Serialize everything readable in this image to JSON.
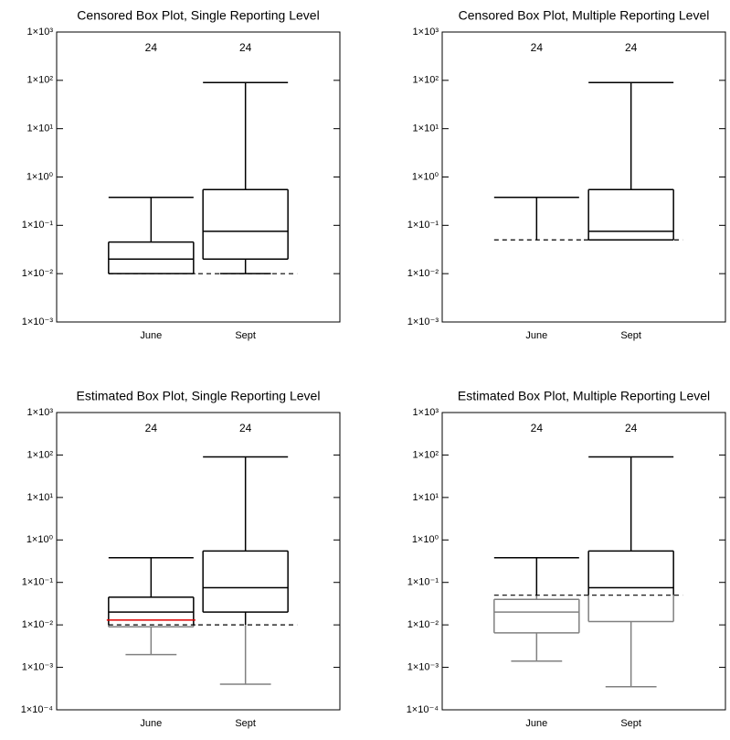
{
  "chart_data": [
    {
      "type": "box",
      "title": "Censored Box Plot, Single Reporting Level",
      "categories": [
        "June",
        "Sept"
      ],
      "n": [
        24,
        24
      ],
      "log_y": true,
      "ylim": [
        0.001,
        1000
      ],
      "yticks": [
        {
          "value": 1000,
          "label": "1×10³"
        },
        {
          "value": 100,
          "label": "1×10²"
        },
        {
          "value": 10,
          "label": "1×10¹"
        },
        {
          "value": 1,
          "label": "1×10⁰"
        },
        {
          "value": 0.1,
          "label": "1×10⁻¹"
        },
        {
          "value": 0.01,
          "label": "1×10⁻²"
        },
        {
          "value": 0.001,
          "label": "1×10⁻³"
        }
      ],
      "reporting_level": [
        0.01,
        0.01
      ],
      "color": "#000000",
      "whisker_high": [
        0.38,
        90
      ],
      "q3": [
        0.045,
        0.55
      ],
      "median": [
        0.02,
        0.075
      ],
      "q1": [
        0.01,
        0.02
      ],
      "whisker_low": [
        null,
        0.01
      ]
    },
    {
      "type": "box",
      "title": "Censored Box Plot, Multiple Reporting Level",
      "categories": [
        "June",
        "Sept"
      ],
      "n": [
        24,
        24
      ],
      "log_y": true,
      "ylim": [
        0.001,
        1000
      ],
      "yticks": [
        {
          "value": 1000,
          "label": "1×10³"
        },
        {
          "value": 100,
          "label": "1×10²"
        },
        {
          "value": 10,
          "label": "1×10¹"
        },
        {
          "value": 1,
          "label": "1×10⁰"
        },
        {
          "value": 0.1,
          "label": "1×10⁻¹"
        },
        {
          "value": 0.01,
          "label": "1×10⁻²"
        },
        {
          "value": 0.001,
          "label": "1×10⁻³"
        }
      ],
      "reporting_level": [
        0.05,
        0.05
      ],
      "color": "#000000",
      "whisker_high": [
        0.38,
        90
      ],
      "q3": [
        null,
        0.55
      ],
      "median": [
        null,
        0.075
      ],
      "q1": [
        null,
        0.05
      ],
      "whisker_low": [
        null,
        null
      ]
    },
    {
      "type": "box",
      "title": "Estimated Box Plot, Single Reporting Level",
      "categories": [
        "June",
        "Sept"
      ],
      "n": [
        24,
        24
      ],
      "log_y": true,
      "ylim": [
        0.0001,
        1000
      ],
      "yticks": [
        {
          "value": 1000,
          "label": "1×10³"
        },
        {
          "value": 100,
          "label": "1×10²"
        },
        {
          "value": 10,
          "label": "1×10¹"
        },
        {
          "value": 1,
          "label": "1×10⁰"
        },
        {
          "value": 0.1,
          "label": "1×10⁻¹"
        },
        {
          "value": 0.01,
          "label": "1×10⁻²"
        },
        {
          "value": 0.001,
          "label": "1×10⁻³"
        },
        {
          "value": 0.0001,
          "label": "1×10⁻⁴"
        }
      ],
      "reporting_level": [
        0.01,
        0.01
      ],
      "color": "#000000",
      "below_level_color": "#808080",
      "highlight_values": [
        0.013,
        null
      ],
      "highlight_color": "#e00000",
      "whisker_high": [
        0.38,
        90
      ],
      "q3": [
        0.045,
        0.55
      ],
      "median": [
        0.02,
        0.075
      ],
      "q1": [
        0.009,
        0.02
      ],
      "whisker_low": [
        0.002,
        0.0004
      ]
    },
    {
      "type": "box",
      "title": "Estimated Box Plot, Multiple Reporting Level",
      "categories": [
        "June",
        "Sept"
      ],
      "n": [
        24,
        24
      ],
      "log_y": true,
      "ylim": [
        0.0001,
        1000
      ],
      "yticks": [
        {
          "value": 1000,
          "label": "1×10³"
        },
        {
          "value": 100,
          "label": "1×10²"
        },
        {
          "value": 10,
          "label": "1×10¹"
        },
        {
          "value": 1,
          "label": "1×10⁰"
        },
        {
          "value": 0.1,
          "label": "1×10⁻¹"
        },
        {
          "value": 0.01,
          "label": "1×10⁻²"
        },
        {
          "value": 0.001,
          "label": "1×10⁻³"
        },
        {
          "value": 0.0001,
          "label": "1×10⁻⁴"
        }
      ],
      "reporting_level": [
        0.05,
        0.05
      ],
      "color": "#000000",
      "below_level_color": "#808080",
      "whisker_high": [
        0.38,
        90
      ],
      "q3": [
        0.04,
        0.55
      ],
      "median": [
        0.02,
        0.075
      ],
      "q1": [
        0.0065,
        0.012
      ],
      "whisker_low": [
        0.0014,
        0.00035
      ]
    }
  ]
}
